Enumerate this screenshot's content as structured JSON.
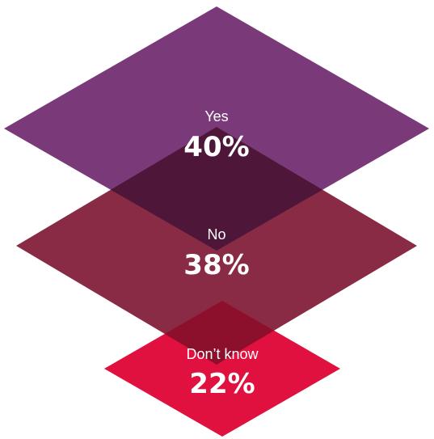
{
  "chart_data": {
    "type": "area",
    "categories": [
      "Yes",
      "No",
      "Don’t know"
    ],
    "values": [
      40,
      38,
      22
    ],
    "value_labels": [
      "40%",
      "38%",
      "22%"
    ],
    "unit": "%",
    "colors": [
      "#7a3a7a",
      "#8a2b45",
      "#e0103f"
    ],
    "overlap_color": "#4e1739",
    "label_color": "#ffffff",
    "background": "#ffffff"
  }
}
